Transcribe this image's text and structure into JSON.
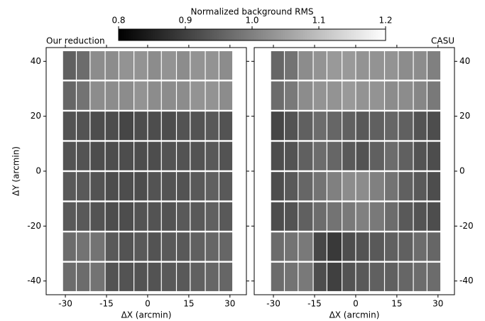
{
  "colorbar": {
    "label": "Normalized background RMS",
    "cmap": "gray",
    "zlim": [
      0.8,
      1.2
    ],
    "ticks": [
      0.8,
      0.9,
      {
        "value": 1.0,
        "label": "1.0"
      },
      1.1,
      1.2
    ]
  },
  "chart_data": [
    {
      "type": "heatmap",
      "title": "Our reduction",
      "xlabel": "ΔX (arcmin)",
      "ylabel": "ΔY (arcmin)",
      "yaxis_side": "left",
      "xlim": [
        -37,
        36
      ],
      "ylim": [
        -45,
        45
      ],
      "xticks": [
        -30,
        -15,
        0,
        15,
        30
      ],
      "yticks": [
        -40,
        -20,
        0,
        20,
        40
      ],
      "xbins": [
        -31,
        -26,
        -21,
        -15.5,
        -10.5,
        -5,
        0,
        5,
        10.5,
        15.5,
        21,
        26,
        31
      ],
      "ybins": [
        -44,
        -33,
        -22,
        -11,
        0,
        11,
        22,
        33,
        44
      ],
      "z": [
        [
          0.97,
          0.97,
          0.98,
          0.93,
          0.93,
          0.93,
          0.93,
          0.94,
          0.94,
          0.95,
          0.96,
          0.96
        ],
        [
          0.97,
          0.98,
          0.98,
          0.94,
          0.93,
          0.94,
          0.93,
          0.94,
          0.94,
          0.95,
          0.96,
          0.96
        ],
        [
          0.94,
          0.94,
          0.93,
          0.92,
          0.92,
          0.93,
          0.93,
          0.93,
          0.94,
          0.94,
          0.95,
          0.94
        ],
        [
          0.94,
          0.94,
          0.93,
          0.92,
          0.92,
          0.92,
          0.93,
          0.93,
          0.93,
          0.94,
          0.95,
          0.94
        ],
        [
          0.93,
          0.93,
          0.92,
          0.92,
          0.92,
          0.92,
          0.92,
          0.93,
          0.93,
          0.93,
          0.94,
          0.93
        ],
        [
          0.93,
          0.93,
          0.92,
          0.92,
          0.91,
          0.92,
          0.92,
          0.92,
          0.93,
          0.93,
          0.94,
          0.93
        ],
        [
          0.96,
          0.98,
          1.02,
          1.02,
          1.02,
          1.03,
          1.02,
          1.02,
          1.02,
          1.03,
          1.03,
          1.02
        ],
        [
          0.95,
          0.97,
          1.02,
          1.02,
          1.03,
          1.03,
          1.02,
          1.03,
          1.02,
          1.03,
          1.03,
          1.02
        ]
      ]
    },
    {
      "type": "heatmap",
      "title": "CASU",
      "xlabel": "ΔX (arcmin)",
      "yaxis_side": "right",
      "xlim": [
        -37,
        36
      ],
      "ylim": [
        -45,
        45
      ],
      "xticks": [
        -30,
        -15,
        0,
        15,
        30
      ],
      "yticks": [
        -40,
        -20,
        0,
        20,
        40
      ],
      "xbins": [
        -31,
        -26,
        -21,
        -15.5,
        -10.5,
        -5,
        0,
        5,
        10.5,
        15.5,
        21,
        26,
        31
      ],
      "ybins": [
        -44,
        -33,
        -22,
        -11,
        0,
        11,
        22,
        33,
        44
      ],
      "z": [
        [
          0.97,
          0.98,
          0.99,
          0.92,
          0.9,
          0.93,
          0.94,
          0.95,
          0.95,
          0.96,
          0.97,
          0.97
        ],
        [
          0.97,
          0.98,
          0.99,
          0.91,
          0.89,
          0.92,
          0.93,
          0.94,
          0.95,
          0.95,
          0.97,
          0.96
        ],
        [
          0.92,
          0.93,
          0.95,
          0.97,
          0.98,
          0.99,
          1.0,
          0.99,
          0.97,
          0.94,
          0.93,
          0.92
        ],
        [
          0.92,
          0.94,
          0.96,
          0.98,
          1.0,
          1.02,
          1.02,
          1.0,
          0.98,
          0.95,
          0.94,
          0.92
        ],
        [
          0.92,
          0.93,
          0.95,
          0.97,
          0.96,
          0.94,
          0.93,
          0.95,
          0.97,
          0.95,
          0.93,
          0.92
        ],
        [
          0.91,
          0.93,
          0.95,
          0.97,
          0.96,
          0.95,
          0.94,
          0.95,
          0.96,
          0.95,
          0.93,
          0.92
        ],
        [
          0.97,
          0.99,
          1.02,
          1.03,
          1.03,
          1.04,
          1.03,
          1.03,
          1.02,
          1.02,
          1.01,
          0.99
        ],
        [
          0.96,
          0.98,
          1.02,
          1.03,
          1.04,
          1.04,
          1.03,
          1.03,
          1.03,
          1.02,
          1.02,
          1.0
        ]
      ]
    }
  ]
}
